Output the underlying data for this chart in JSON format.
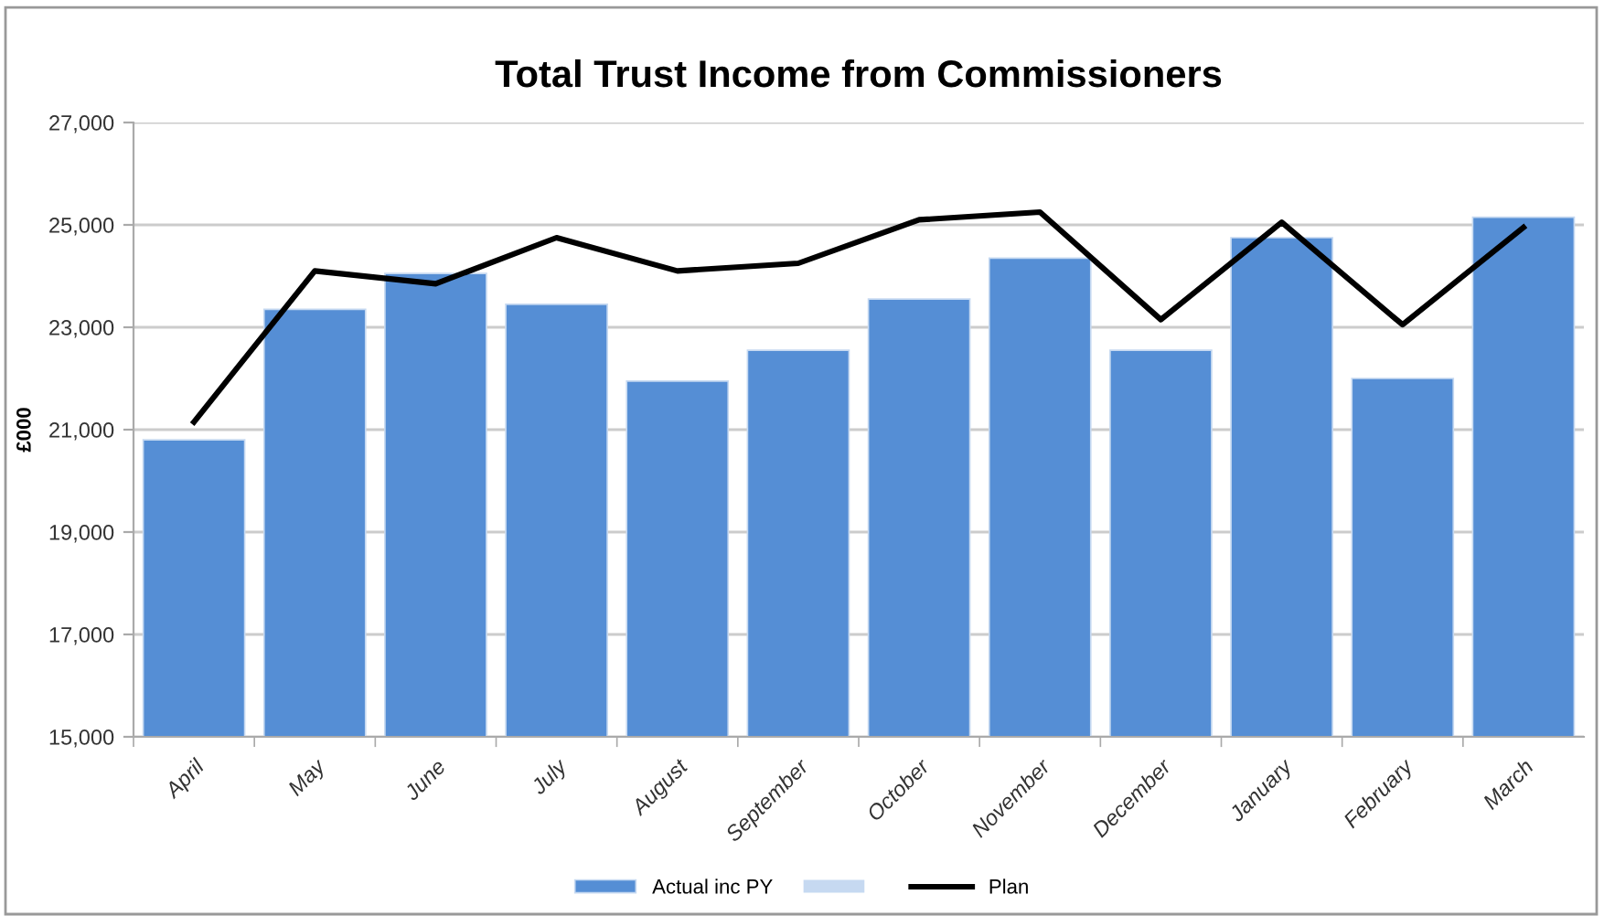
{
  "chart_data": {
    "type": "bar",
    "title": "Total Trust Income from Commissioners",
    "ylabel": "£000",
    "categories": [
      "April",
      "May",
      "June",
      "July",
      "August",
      "September",
      "October",
      "November",
      "December",
      "January",
      "February",
      "March"
    ],
    "series": [
      {
        "name": "Actual inc PY",
        "color": "#558ed5",
        "values": [
          20800,
          23350,
          24050,
          23450,
          21950,
          22550,
          23550,
          24350,
          22550,
          24750,
          22000,
          25150
        ]
      },
      {
        "color": "#c6d9f1",
        "values": [
          null,
          null,
          null,
          null,
          null,
          null,
          null,
          null,
          null,
          null,
          null,
          null
        ]
      },
      {
        "name": "Plan",
        "type": "line",
        "color": "#000000",
        "values": [
          21150,
          24100,
          23850,
          24750,
          24100,
          24250,
          25100,
          25250,
          23150,
          25050,
          23050,
          24950
        ]
      }
    ],
    "ylim": [
      15000,
      27000
    ],
    "yticks": [
      {
        "value": 15000,
        "label": "15,000"
      },
      {
        "value": 17000,
        "label": "17,000"
      },
      {
        "value": 19000,
        "label": "19,000"
      },
      {
        "value": 21000,
        "label": "21,000"
      },
      {
        "value": 23000,
        "label": "23,000"
      },
      {
        "value": 25000,
        "label": "25,000"
      },
      {
        "value": 27000,
        "label": "27,000"
      }
    ],
    "grid": "y",
    "legend": "bottom",
    "marker": "none",
    "line_style": "solid"
  }
}
